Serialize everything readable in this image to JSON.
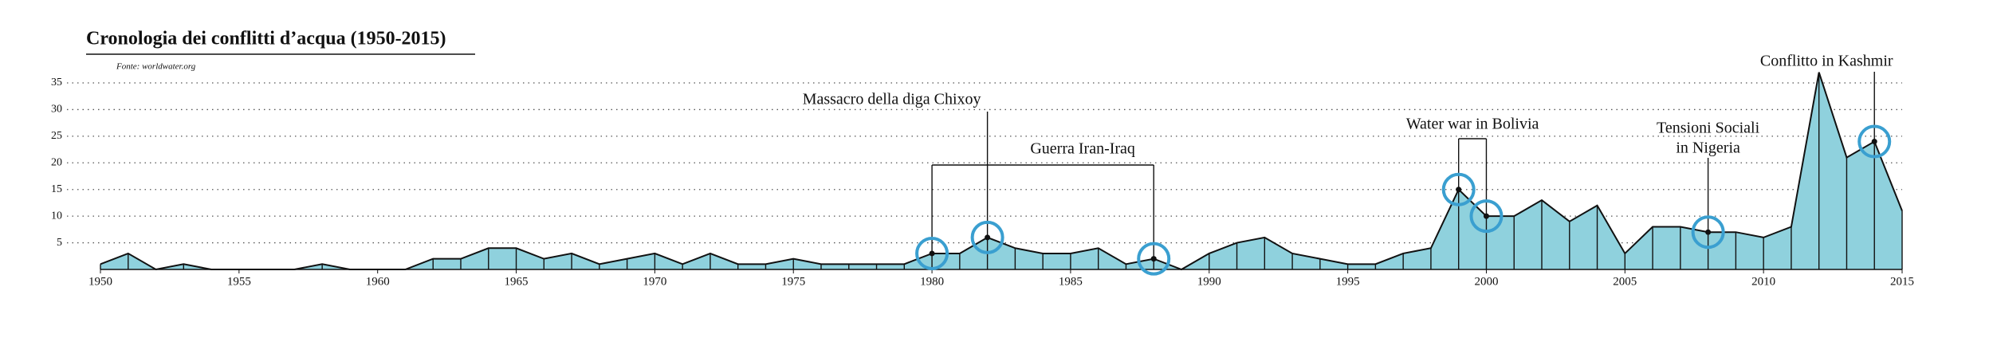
{
  "chart_data": {
    "type": "area",
    "title": "Cronologia dei conflitti d’acqua (1950-2015)",
    "subtitle": "Fonte: worldwater.org",
    "x": [
      1950,
      1951,
      1952,
      1953,
      1954,
      1955,
      1956,
      1957,
      1958,
      1959,
      1960,
      1961,
      1962,
      1963,
      1964,
      1965,
      1966,
      1967,
      1968,
      1969,
      1970,
      1971,
      1972,
      1973,
      1974,
      1975,
      1976,
      1977,
      1978,
      1979,
      1980,
      1981,
      1982,
      1983,
      1984,
      1985,
      1986,
      1987,
      1988,
      1989,
      1990,
      1991,
      1992,
      1993,
      1994,
      1995,
      1996,
      1997,
      1998,
      1999,
      2000,
      2001,
      2002,
      2003,
      2004,
      2005,
      2006,
      2007,
      2008,
      2009,
      2010,
      2011,
      2012,
      2013,
      2014,
      2015
    ],
    "values": [
      1,
      3,
      0,
      1,
      0,
      0,
      0,
      0,
      1,
      0,
      0,
      0,
      2,
      2,
      4,
      4,
      2,
      3,
      1,
      2,
      3,
      1,
      3,
      1,
      1,
      2,
      1,
      1,
      1,
      1,
      3,
      3,
      6,
      4,
      3,
      3,
      4,
      1,
      2,
      0,
      3,
      5,
      6,
      3,
      2,
      1,
      1,
      3,
      4,
      15,
      10,
      10,
      13,
      9,
      12,
      3,
      8,
      8,
      7,
      7,
      6,
      8,
      37,
      21,
      24,
      11
    ],
    "color": "#8fd1dd",
    "xlim": [
      1950,
      2015
    ],
    "xticks": [
      1950,
      1955,
      1960,
      1965,
      1970,
      1975,
      1980,
      1985,
      1990,
      1995,
      2000,
      2005,
      2010,
      2015
    ],
    "ylim": [
      0,
      35
    ],
    "yticks": [
      5,
      10,
      15,
      20,
      25,
      30,
      35
    ],
    "grid": true,
    "annotations": [
      {
        "lines": [
          "Massacro della diga Chixoy"
        ],
        "years": [
          1982
        ]
      },
      {
        "lines": [
          "Guerra Iran-Iraq"
        ],
        "years": [
          1980,
          1988
        ]
      },
      {
        "lines": [
          "Water war in Bolivia"
        ],
        "years": [
          1999,
          2000
        ]
      },
      {
        "lines": [
          "Tensioni Sociali",
          "in Nigeria"
        ],
        "years": [
          2008
        ]
      },
      {
        "lines": [
          "Conflitto in Kashmir"
        ],
        "years": [
          2014
        ]
      }
    ]
  }
}
